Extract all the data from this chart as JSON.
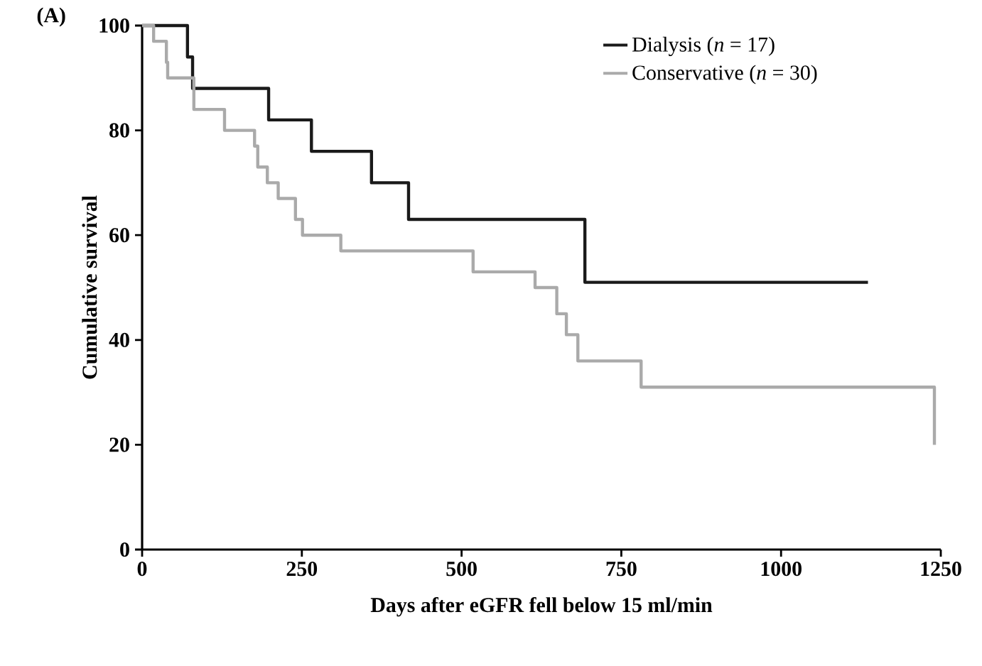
{
  "chart_data": {
    "type": "step",
    "title": "(A)",
    "xlabel": "Days after eGFR fell below 15 ml/min",
    "ylabel": "Cumulative survival",
    "xlim": [
      0,
      1250
    ],
    "xticks": [
      0,
      250,
      500,
      750,
      1000,
      1250
    ],
    "ylim": [
      0,
      100
    ],
    "yticks": [
      0,
      20,
      40,
      60,
      80,
      100
    ],
    "legend": "top right",
    "grid": false,
    "marker": "none",
    "line_style": "solid",
    "series": [
      {
        "name": "Dialysis (*n* = 17)",
        "color": "#1a1a1a",
        "x": [
          0,
          71,
          79,
          198,
          265,
          359,
          417,
          693,
          1136
        ],
        "values": [
          100,
          94,
          88,
          82,
          76,
          70,
          63,
          51,
          51
        ]
      },
      {
        "name": "Conservative (*n* = 30)",
        "color": "#aaaaaa",
        "x": [
          0,
          18,
          38,
          40,
          81,
          129,
          176,
          181,
          196,
          213,
          240,
          251,
          311,
          518,
          615,
          649,
          664,
          682,
          781,
          1240
        ],
        "values": [
          100,
          97,
          93,
          90,
          84,
          80,
          77,
          73,
          70,
          67,
          63,
          60,
          57,
          53,
          50,
          45,
          41,
          36,
          31,
          20
        ]
      }
    ]
  }
}
